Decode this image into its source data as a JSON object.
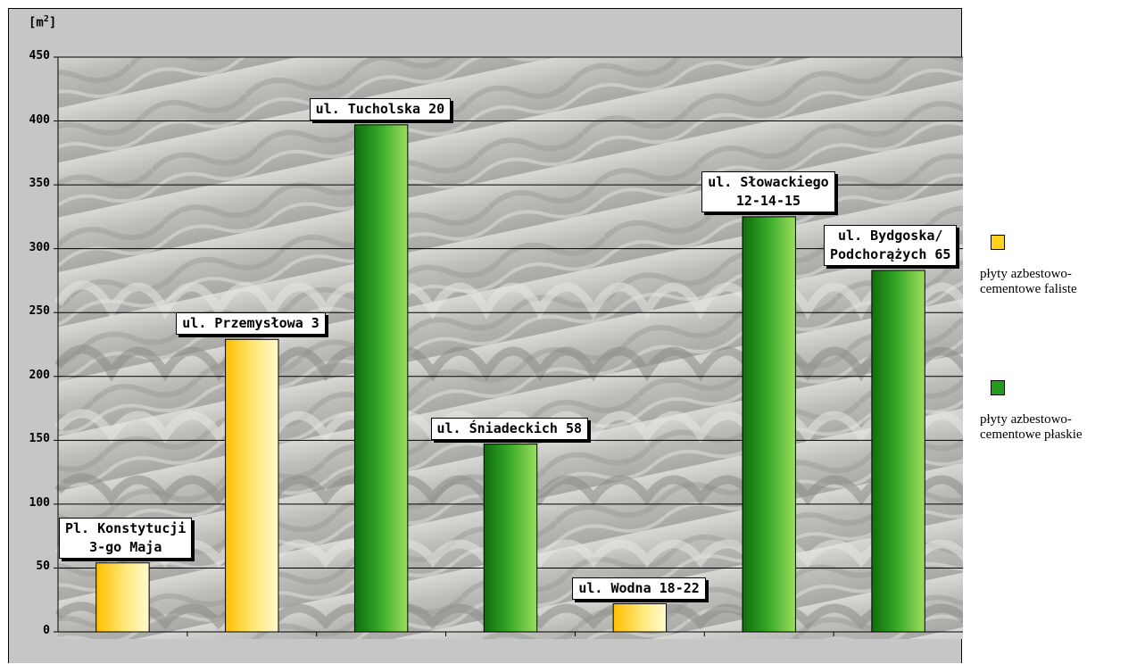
{
  "colors": {
    "faliste": "#ffd21e",
    "plaskie": "#249a1e",
    "background": "#c6c6c6"
  },
  "chart_data": {
    "type": "bar",
    "unit_label": "[m",
    "unit_exponent": "2",
    "unit_close": "]",
    "ylim": [
      0,
      450
    ],
    "yticks": [
      0,
      50,
      100,
      150,
      200,
      250,
      300,
      350,
      400,
      450
    ],
    "grid": true,
    "legend_position": "right",
    "series": [
      {
        "name": "płyty azbestowo-cementowe faliste",
        "color_key": "faliste"
      },
      {
        "name": "płyty azbestowo-cementowe płaskie",
        "color_key": "plaskie"
      }
    ],
    "bars": [
      {
        "label": "Pl. Konstytucji\n3-go Maja",
        "value": 54,
        "series": 0
      },
      {
        "label": "ul. Przemysłowa 3",
        "value": 229,
        "series": 0
      },
      {
        "label": "ul. Tucholska 20",
        "value": 397,
        "series": 1
      },
      {
        "label": "ul. Śniadeckich 58",
        "value": 147,
        "series": 1
      },
      {
        "label": "ul. Wodna 18-22",
        "value": 22,
        "series": 0
      },
      {
        "label": "ul. Słowackiego\n12-14-15",
        "value": 325,
        "series": 1
      },
      {
        "label": "ul. Bydgoska/\nPodchorążych 65",
        "value": 283,
        "series": 1
      }
    ]
  },
  "legend": [
    {
      "text_line1": "płyty azbestowo-",
      "text_line2": "cementowe faliste"
    },
    {
      "text_line1": "płyty azbestowo-",
      "text_line2": "cementowe płaskie"
    }
  ]
}
